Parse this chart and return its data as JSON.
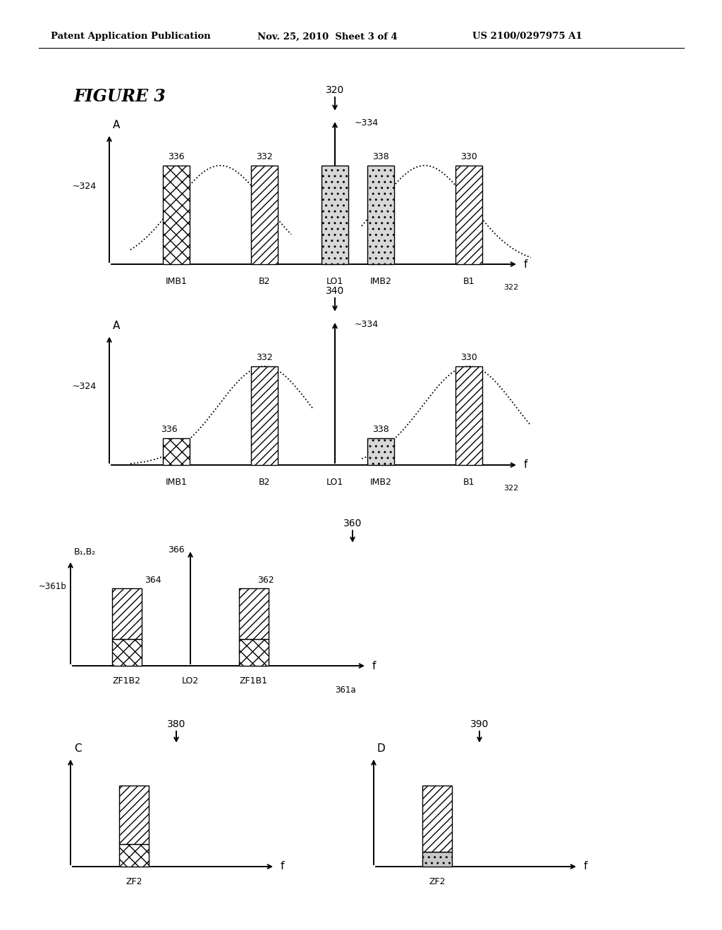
{
  "header_left": "Patent Application Publication",
  "header_mid": "Nov. 25, 2010  Sheet 3 of 4",
  "header_right": "US 2100/0297975 A1",
  "figure_label": "FIGURE 3",
  "bg_color": "#ffffff",
  "text_color": "#000000"
}
